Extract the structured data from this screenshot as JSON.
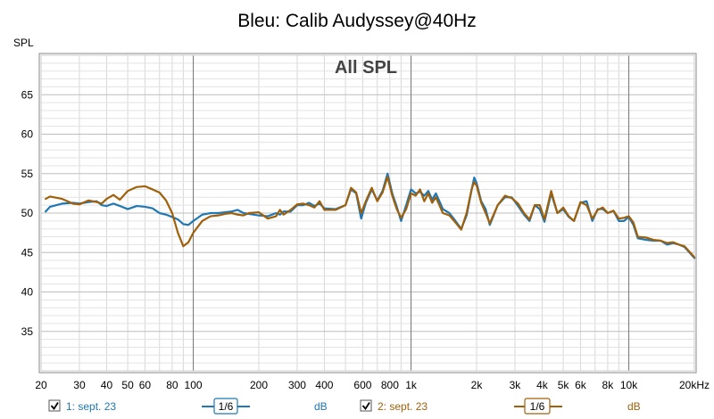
{
  "chart_data": {
    "type": "line",
    "title": "Bleu: Calib Audyssey@40Hz",
    "subtitle": "All SPL",
    "ylabel": "SPL",
    "xlabel": "",
    "x_scale": "log",
    "xlim": [
      20,
      20000
    ],
    "ylim": [
      30,
      70
    ],
    "grid": true,
    "x_ticks": [
      {
        "value": 20,
        "label": "20"
      },
      {
        "value": 30,
        "label": "30"
      },
      {
        "value": 40,
        "label": "40"
      },
      {
        "value": 50,
        "label": "50"
      },
      {
        "value": 60,
        "label": "60"
      },
      {
        "value": 80,
        "label": "80"
      },
      {
        "value": 100,
        "label": "100"
      },
      {
        "value": 200,
        "label": "200"
      },
      {
        "value": 300,
        "label": "300"
      },
      {
        "value": 400,
        "label": "400"
      },
      {
        "value": 600,
        "label": "600"
      },
      {
        "value": 800,
        "label": "800"
      },
      {
        "value": 1000,
        "label": "1k"
      },
      {
        "value": 2000,
        "label": "2k"
      },
      {
        "value": 3000,
        "label": "3k"
      },
      {
        "value": 4000,
        "label": "4k"
      },
      {
        "value": 5000,
        "label": "5k"
      },
      {
        "value": 6000,
        "label": "6k"
      },
      {
        "value": 8000,
        "label": "8k"
      },
      {
        "value": 10000,
        "label": "10k"
      },
      {
        "value": 20000,
        "label": "20kHz"
      }
    ],
    "y_ticks": [
      35,
      40,
      45,
      50,
      55,
      60,
      65
    ],
    "series": [
      {
        "name": "1: sept. 23",
        "color": "#1f77b4",
        "smoothing": "1/6",
        "unit": "dB",
        "x": [
          21,
          22,
          25,
          28,
          30,
          33,
          36,
          38,
          40,
          43,
          46,
          50,
          55,
          60,
          65,
          70,
          75,
          80,
          85,
          90,
          95,
          100,
          110,
          120,
          130,
          140,
          150,
          160,
          170,
          180,
          200,
          220,
          240,
          250,
          260,
          280,
          300,
          320,
          340,
          360,
          380,
          400,
          450,
          500,
          530,
          560,
          590,
          620,
          660,
          700,
          740,
          780,
          820,
          860,
          900,
          950,
          1000,
          1050,
          1100,
          1150,
          1200,
          1250,
          1300,
          1350,
          1400,
          1500,
          1600,
          1700,
          1800,
          1900,
          1950,
          2000,
          2100,
          2200,
          2300,
          2500,
          2700,
          2900,
          3100,
          3300,
          3500,
          3700,
          3900,
          4100,
          4400,
          4700,
          5000,
          5300,
          5600,
          6000,
          6400,
          6800,
          7200,
          7600,
          8000,
          8500,
          9000,
          9500,
          10000,
          10500,
          11000,
          12000,
          13000,
          14000,
          15000,
          16000,
          17000,
          18000,
          19000,
          20000
        ],
        "y": [
          50.2,
          50.8,
          51.2,
          51.3,
          51.2,
          51.4,
          51.5,
          51.0,
          50.9,
          51.2,
          50.9,
          50.5,
          50.9,
          50.8,
          50.6,
          50.0,
          49.8,
          49.5,
          49.2,
          48.6,
          48.5,
          49.0,
          49.8,
          50.0,
          50.0,
          50.1,
          50.2,
          50.4,
          50.0,
          49.9,
          49.7,
          49.6,
          50.0,
          49.8,
          50.2,
          50.2,
          51.0,
          51.0,
          51.3,
          50.9,
          51.2,
          50.6,
          50.5,
          51.0,
          53.0,
          52.5,
          49.3,
          51.3,
          53.0,
          51.6,
          52.8,
          55.0,
          52.5,
          50.8,
          49.0,
          51.0,
          53.0,
          52.5,
          52.7,
          52.2,
          52.8,
          51.7,
          52.5,
          51.5,
          50.5,
          50.0,
          49.0,
          48.0,
          49.7,
          53.0,
          54.5,
          53.8,
          51.5,
          50.5,
          48.5,
          51.0,
          52.0,
          52.0,
          50.9,
          49.8,
          49.0,
          51.0,
          50.5,
          48.9,
          52.5,
          50.0,
          50.5,
          49.5,
          49.0,
          51.3,
          51.5,
          49.0,
          50.5,
          50.5,
          50.0,
          50.3,
          49.0,
          49.0,
          49.5,
          48.5,
          46.8,
          46.6,
          46.5,
          46.5,
          46.0,
          46.2,
          46.0,
          45.7,
          45.0,
          44.3
        ]
      },
      {
        "name": "2: sept. 23",
        "color": "#a0600a",
        "smoothing": "1/6",
        "unit": "dB",
        "x": [
          21,
          22,
          25,
          28,
          30,
          33,
          36,
          38,
          40,
          43,
          46,
          50,
          55,
          60,
          65,
          70,
          75,
          80,
          85,
          90,
          95,
          100,
          110,
          120,
          130,
          140,
          150,
          160,
          170,
          180,
          200,
          220,
          240,
          250,
          260,
          280,
          300,
          320,
          340,
          360,
          380,
          400,
          450,
          500,
          530,
          560,
          590,
          620,
          660,
          700,
          740,
          780,
          820,
          860,
          900,
          950,
          1000,
          1050,
          1100,
          1150,
          1200,
          1250,
          1300,
          1350,
          1400,
          1500,
          1600,
          1700,
          1800,
          1900,
          1950,
          2000,
          2100,
          2200,
          2300,
          2500,
          2700,
          2900,
          3100,
          3300,
          3500,
          3700,
          3900,
          4100,
          4400,
          4700,
          5000,
          5300,
          5600,
          6000,
          6400,
          6800,
          7200,
          7600,
          8000,
          8500,
          9000,
          9500,
          10000,
          10500,
          11000,
          12000,
          13000,
          14000,
          15000,
          16000,
          17000,
          18000,
          19000,
          20000
        ],
        "y": [
          51.8,
          52.1,
          51.8,
          51.2,
          51.1,
          51.6,
          51.4,
          51.2,
          51.8,
          52.3,
          51.7,
          52.8,
          53.3,
          53.4,
          53.0,
          52.6,
          51.6,
          50.0,
          47.5,
          45.8,
          46.3,
          47.5,
          49.0,
          49.6,
          49.7,
          49.9,
          50.0,
          49.8,
          49.7,
          50.0,
          50.1,
          49.3,
          49.6,
          50.4,
          49.8,
          50.4,
          51.1,
          51.2,
          51.0,
          50.7,
          51.5,
          50.4,
          50.4,
          51.0,
          53.2,
          52.6,
          50.0,
          51.5,
          53.2,
          51.5,
          52.6,
          54.6,
          52.2,
          50.5,
          49.4,
          50.5,
          52.5,
          52.2,
          53.0,
          51.5,
          52.5,
          51.3,
          52.0,
          51.0,
          50.0,
          49.7,
          48.8,
          47.9,
          50.0,
          53.1,
          53.9,
          53.5,
          51.3,
          50.0,
          48.7,
          51.0,
          52.2,
          51.9,
          51.2,
          50.0,
          49.2,
          51.0,
          51.0,
          49.2,
          52.8,
          50.0,
          50.7,
          49.6,
          49.0,
          51.4,
          51.0,
          49.3,
          50.4,
          50.7,
          50.0,
          50.3,
          49.3,
          49.4,
          49.6,
          48.8,
          47.0,
          46.9,
          46.6,
          46.5,
          46.2,
          46.3,
          46.0,
          45.8,
          45.1,
          44.4
        ]
      }
    ]
  },
  "legend": {
    "items": [
      {
        "label": "1: sept. 23",
        "smoothing_label": "1/6",
        "unit_label": "dB",
        "color": "#1f77b4"
      },
      {
        "label": "2: sept. 23",
        "smoothing_label": "1/6",
        "unit_label": "dB",
        "color": "#a0600a"
      }
    ]
  }
}
